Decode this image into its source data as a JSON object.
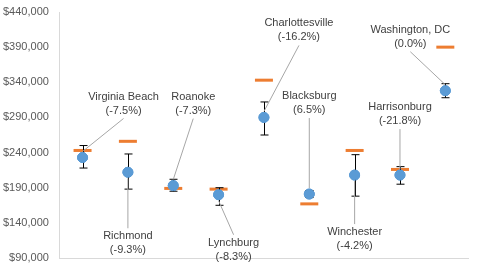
{
  "chart_data": {
    "type": "scatter",
    "categories": [
      "Virginia Beach",
      "Richmond",
      "Roanoke",
      "Lynchburg",
      "Charlottesville",
      "Blacksburg",
      "Winchester",
      "Harrisonburg",
      "Washington, DC"
    ],
    "annotations": [
      "(-7.5%)",
      "(-9.3%)",
      "(-7.3%)",
      "(-8.3%)",
      "(-16.2%)",
      "(6.5%)",
      "(-4.2%)",
      "(-21.8%)",
      "(0.0%)"
    ],
    "series": [
      {
        "color": "#5b9bd5",
        "marker": "circle",
        "values": [
          233000,
          212000,
          193000,
          180000,
          290000,
          181000,
          208000,
          208000,
          328000
        ],
        "lower": [
          218000,
          188000,
          185000,
          165000,
          265000,
          176000,
          178000,
          195000,
          318000
        ],
        "upper": [
          250000,
          238000,
          202000,
          190000,
          312000,
          186000,
          237000,
          220000,
          338000
        ]
      },
      {
        "color": "#ed7d31",
        "marker": "line",
        "values": [
          243000,
          256000,
          189000,
          188000,
          343000,
          167000,
          243000,
          216000,
          390000
        ]
      }
    ],
    "ylim": [
      90000,
      440000
    ],
    "yticks": [
      {
        "value": 90000,
        "label": "$90,000"
      },
      {
        "value": 140000,
        "label": "$140,000"
      },
      {
        "value": 190000,
        "label": "$190,000"
      },
      {
        "value": 240000,
        "label": "$240,000"
      },
      {
        "value": 290000,
        "label": "$290,000"
      },
      {
        "value": 340000,
        "label": "$340,000"
      },
      {
        "value": 390000,
        "label": "$390,000"
      },
      {
        "value": 440000,
        "label": "$440,000"
      }
    ],
    "grid": false,
    "tick_labels": "y"
  }
}
